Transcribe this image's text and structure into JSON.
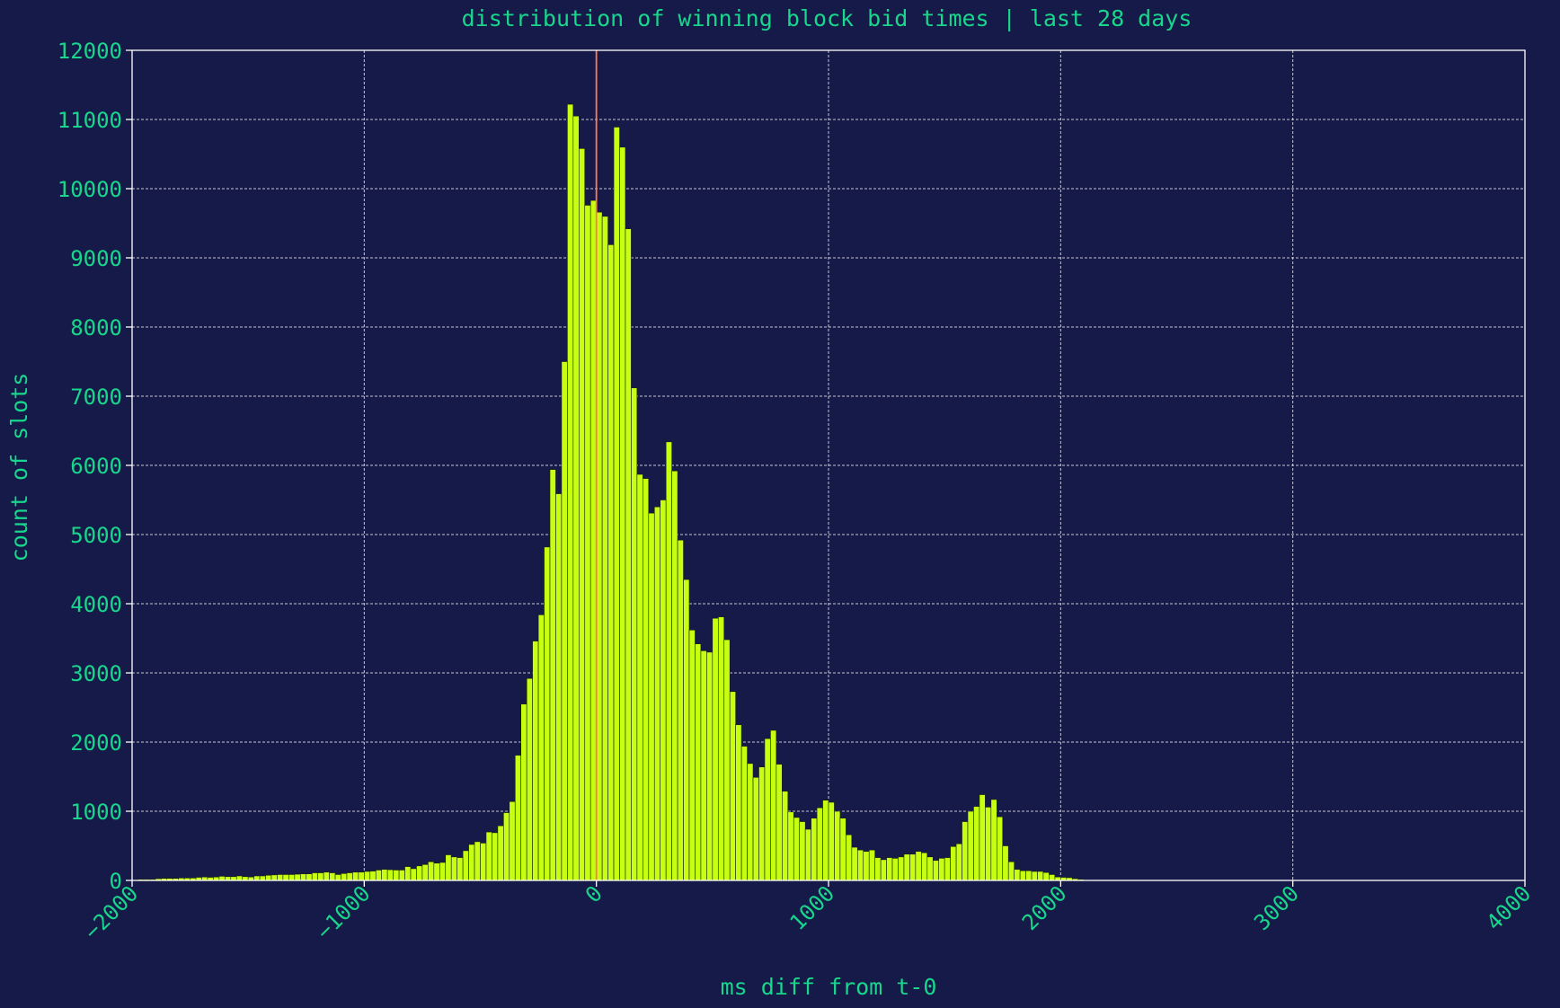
{
  "chart_data": {
    "type": "bar",
    "title": "distribution of winning block bid times | last 28 days",
    "xlabel": "ms diff from t-0",
    "ylabel": "count of slots",
    "xlim": [
      -2000,
      4000
    ],
    "ylim": [
      0,
      12000
    ],
    "xticks": [
      -2000,
      -1000,
      0,
      1000,
      2000,
      3000,
      4000
    ],
    "yticks": [
      0,
      1000,
      2000,
      3000,
      4000,
      5000,
      6000,
      7000,
      8000,
      9000,
      10000,
      11000,
      12000
    ],
    "grid": true,
    "bin_width_ms": 25,
    "reference_line_x": 0,
    "colors": {
      "background": "#161a48",
      "bars": "#c6ff12",
      "text": "#18d68c",
      "reference_line": "#ff7a55",
      "grid": "#e6e6ee"
    },
    "bins_x": [
      -2000,
      -1975,
      -1950,
      -1925,
      -1900,
      -1875,
      -1850,
      -1825,
      -1800,
      -1775,
      -1750,
      -1725,
      -1700,
      -1675,
      -1650,
      -1625,
      -1600,
      -1575,
      -1550,
      -1525,
      -1500,
      -1475,
      -1450,
      -1425,
      -1400,
      -1375,
      -1350,
      -1325,
      -1300,
      -1275,
      -1250,
      -1225,
      -1200,
      -1175,
      -1150,
      -1125,
      -1100,
      -1075,
      -1050,
      -1025,
      -1000,
      -975,
      -950,
      -925,
      -900,
      -875,
      -850,
      -825,
      -800,
      -775,
      -750,
      -725,
      -700,
      -675,
      -650,
      -625,
      -600,
      -575,
      -550,
      -525,
      -500,
      -475,
      -450,
      -425,
      -400,
      -375,
      -350,
      -325,
      -300,
      -275,
      -250,
      -225,
      -200,
      -175,
      -150,
      -125,
      -100,
      -75,
      -50,
      -25,
      0,
      25,
      50,
      75,
      100,
      125,
      150,
      175,
      200,
      225,
      250,
      275,
      300,
      325,
      350,
      375,
      400,
      425,
      450,
      475,
      500,
      525,
      550,
      575,
      600,
      625,
      650,
      675,
      700,
      725,
      750,
      775,
      800,
      825,
      850,
      875,
      900,
      925,
      950,
      975,
      1000,
      1025,
      1050,
      1075,
      1100,
      1125,
      1150,
      1175,
      1200,
      1225,
      1250,
      1275,
      1300,
      1325,
      1350,
      1375,
      1400,
      1425,
      1450,
      1475,
      1500,
      1525,
      1550,
      1575,
      1600,
      1625,
      1650,
      1675,
      1700,
      1725,
      1750,
      1775,
      1800,
      1825,
      1850,
      1875,
      1900,
      1925,
      1950,
      1975,
      2000,
      2025,
      2050,
      2075,
      2100,
      2125,
      2150,
      2175,
      2200,
      2225,
      2250,
      2275,
      2300,
      2325,
      2350,
      2375,
      2400,
      2425,
      2450,
      2475,
      2500,
      2525,
      2550,
      2575,
      2600,
      2625,
      2650,
      2675,
      2700,
      2725,
      2750,
      2775,
      2800,
      2825,
      2850,
      2875,
      2900,
      2925,
      2950,
      2975,
      3000,
      3025,
      3050,
      3075,
      3100,
      3125,
      3150,
      3175,
      3200,
      3225,
      3250,
      3275,
      3300,
      3325,
      3350,
      3375,
      3400,
      3425,
      3450,
      3475,
      3500,
      3525,
      3550,
      3575,
      3600,
      3625,
      3650,
      3675,
      3700,
      3725,
      3750,
      3775,
      3800,
      3825,
      3850,
      3875,
      3900,
      3925,
      3950,
      3975
    ],
    "values": [
      0,
      15,
      15,
      15,
      25,
      30,
      30,
      30,
      35,
      35,
      35,
      45,
      50,
      45,
      50,
      60,
      55,
      55,
      65,
      55,
      50,
      65,
      65,
      75,
      80,
      85,
      85,
      85,
      90,
      95,
      95,
      110,
      110,
      120,
      110,
      85,
      100,
      110,
      120,
      120,
      130,
      135,
      150,
      160,
      155,
      150,
      150,
      200,
      170,
      210,
      230,
      270,
      250,
      260,
      370,
      340,
      330,
      430,
      520,
      560,
      540,
      700,
      690,
      790,
      980,
      1140,
      1810,
      2550,
      2920,
      3460,
      3840,
      4820,
      5940,
      5590,
      7500,
      11220,
      11050,
      10580,
      9760,
      9830,
      9660,
      9600,
      9190,
      10890,
      10600,
      9420,
      7120,
      5870,
      5810,
      5310,
      5400,
      5500,
      6340,
      5920,
      4920,
      4350,
      3620,
      3420,
      3320,
      3300,
      3790,
      3810,
      3480,
      2730,
      2250,
      1940,
      1690,
      1490,
      1640,
      2050,
      2170,
      1680,
      1290,
      990,
      910,
      850,
      740,
      900,
      1050,
      1160,
      1130,
      1000,
      900,
      660,
      480,
      440,
      420,
      440,
      330,
      300,
      330,
      320,
      340,
      380,
      380,
      420,
      400,
      340,
      290,
      320,
      330,
      490,
      530,
      850,
      1000,
      1070,
      1240,
      1060,
      1170,
      920,
      500,
      270,
      160,
      140,
      140,
      130,
      130,
      115,
      85,
      50,
      45,
      40,
      25,
      15,
      5,
      5,
      0,
      0,
      0,
      0,
      0,
      0,
      0,
      0,
      0,
      0,
      0,
      0,
      0,
      0,
      0,
      0,
      0,
      0,
      0,
      0,
      0,
      0,
      0,
      0,
      0,
      0,
      0,
      0,
      0,
      0,
      0,
      0,
      0,
      0,
      0,
      0,
      0,
      0,
      0,
      0,
      0,
      0,
      0,
      0,
      0,
      0,
      0,
      0,
      0,
      0,
      0,
      0,
      0,
      0,
      0,
      0,
      0,
      0,
      0,
      0,
      0,
      0,
      0,
      0,
      0,
      0,
      0,
      0,
      0,
      0,
      0,
      0,
      0,
      0
    ]
  }
}
